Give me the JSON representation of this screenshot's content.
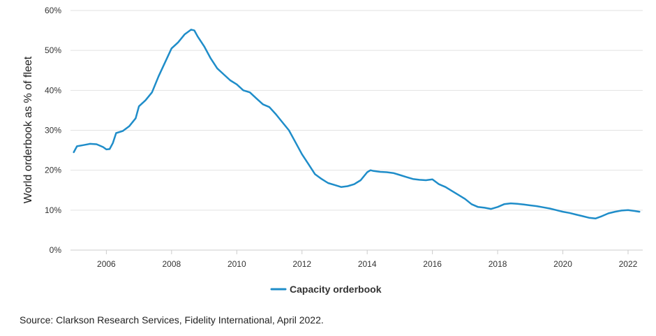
{
  "chart_data": {
    "type": "line",
    "ylabel": "World orderbook as % of fleet",
    "xlim": [
      2004.9,
      2022.45
    ],
    "ylim": [
      0,
      60
    ],
    "y_ticks": [
      0,
      10,
      20,
      30,
      40,
      50,
      60
    ],
    "y_tick_labels": [
      "0%",
      "10%",
      "20%",
      "30%",
      "40%",
      "50%",
      "60%"
    ],
    "x_ticks": [
      2006,
      2008,
      2010,
      2012,
      2014,
      2016,
      2018,
      2020,
      2022
    ],
    "x_tick_labels": [
      "2006",
      "2008",
      "2010",
      "2012",
      "2014",
      "2016",
      "2018",
      "2020",
      "2022"
    ],
    "grid": "horizontal",
    "legend_position": "bottom-center",
    "series": [
      {
        "name": "Capacity orderbook",
        "color": "#1f8dc9",
        "x": [
          2005.0,
          2005.1,
          2005.3,
          2005.5,
          2005.7,
          2005.9,
          2006.0,
          2006.1,
          2006.2,
          2006.3,
          2006.5,
          2006.7,
          2006.9,
          2007.0,
          2007.2,
          2007.4,
          2007.6,
          2007.8,
          2008.0,
          2008.2,
          2008.4,
          2008.6,
          2008.7,
          2008.8,
          2009.0,
          2009.2,
          2009.4,
          2009.6,
          2009.8,
          2010.0,
          2010.2,
          2010.4,
          2010.6,
          2010.8,
          2011.0,
          2011.2,
          2011.4,
          2011.6,
          2011.8,
          2012.0,
          2012.2,
          2012.4,
          2012.6,
          2012.8,
          2013.0,
          2013.2,
          2013.4,
          2013.6,
          2013.8,
          2014.0,
          2014.1,
          2014.2,
          2014.4,
          2014.6,
          2014.8,
          2015.0,
          2015.2,
          2015.4,
          2015.6,
          2015.8,
          2016.0,
          2016.2,
          2016.4,
          2016.6,
          2016.8,
          2017.0,
          2017.2,
          2017.4,
          2017.6,
          2017.8,
          2018.0,
          2018.2,
          2018.4,
          2018.6,
          2018.8,
          2019.0,
          2019.2,
          2019.4,
          2019.6,
          2019.8,
          2020.0,
          2020.2,
          2020.4,
          2020.6,
          2020.8,
          2021.0,
          2021.2,
          2021.4,
          2021.6,
          2021.8,
          2022.0,
          2022.2,
          2022.35
        ],
        "y": [
          24.5,
          26.0,
          26.3,
          26.6,
          26.5,
          25.8,
          25.2,
          25.3,
          26.8,
          29.3,
          29.8,
          31.0,
          33.0,
          36.0,
          37.5,
          39.5,
          43.5,
          47.0,
          50.5,
          52.0,
          54.0,
          55.2,
          55.0,
          53.5,
          51.0,
          48.0,
          45.5,
          44.0,
          42.5,
          41.5,
          40.0,
          39.5,
          38.0,
          36.5,
          35.8,
          34.0,
          32.0,
          30.0,
          27.0,
          24.0,
          21.5,
          19.0,
          17.8,
          16.8,
          16.3,
          15.8,
          16.0,
          16.5,
          17.5,
          19.5,
          20.0,
          19.8,
          19.6,
          19.5,
          19.3,
          18.8,
          18.3,
          17.8,
          17.6,
          17.5,
          17.7,
          16.5,
          15.8,
          14.8,
          13.8,
          12.8,
          11.5,
          10.8,
          10.6,
          10.3,
          10.8,
          11.5,
          11.7,
          11.6,
          11.4,
          11.2,
          11.0,
          10.7,
          10.4,
          10.0,
          9.6,
          9.3,
          8.9,
          8.5,
          8.1,
          7.9,
          8.5,
          9.2,
          9.6,
          9.9,
          10.0,
          9.8,
          9.6
        ]
      }
    ]
  },
  "footer": {
    "source": "Source: Clarkson Research Services, Fidelity International, April 2022."
  }
}
